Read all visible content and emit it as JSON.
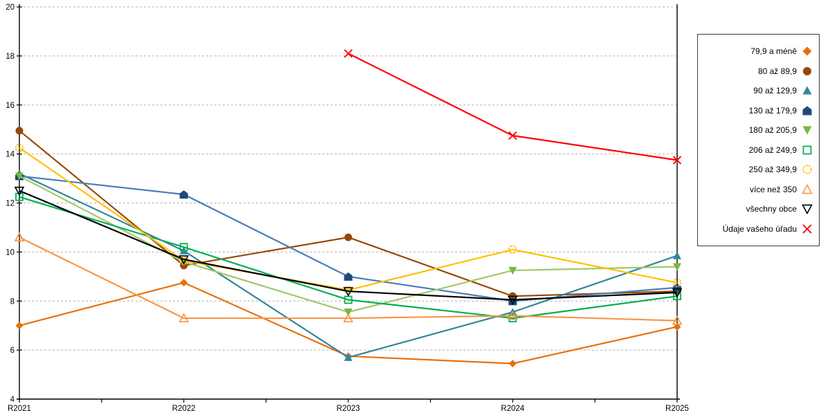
{
  "chart_data": {
    "type": "line",
    "title": "",
    "xlabel": "",
    "ylabel": "",
    "categories": [
      "R2021",
      "R2022",
      "R2023",
      "R2024",
      "R2025"
    ],
    "ylim": [
      4,
      20
    ],
    "yticks": [
      4,
      6,
      8,
      10,
      12,
      14,
      16,
      18,
      20
    ],
    "grid": "horizontal-dashed",
    "gridline_color": "#b0b0b0",
    "axis_color": "#000000",
    "legend_position": "right",
    "series": [
      {
        "name": "79,9 a méně",
        "marker": "diamond",
        "open": false,
        "color": "#E8700A",
        "line_color": "#E8700A",
        "values": [
          7.0,
          8.75,
          5.75,
          5.45,
          6.95
        ]
      },
      {
        "name": "80 až 89,9",
        "marker": "circle",
        "open": false,
        "color": "#984807",
        "line_color": "#984807",
        "values": [
          14.95,
          9.45,
          10.6,
          8.2,
          8.4
        ]
      },
      {
        "name": "90 až 129,9",
        "marker": "triangle-up",
        "open": false,
        "color": "#31859C",
        "line_color": "#31859C",
        "values": [
          13.2,
          10.05,
          5.7,
          7.55,
          9.85
        ]
      },
      {
        "name": "130 až 179,9",
        "marker": "house",
        "open": false,
        "color": "#1F497D",
        "line_color": "#4A7EBB",
        "values": [
          13.1,
          12.35,
          9.0,
          8.0,
          8.55
        ]
      },
      {
        "name": "180 až 205,9",
        "marker": "triangle-down",
        "open": false,
        "color": "#76B83F",
        "line_color": "#A2C769",
        "values": [
          13.1,
          9.6,
          7.55,
          9.25,
          9.4
        ]
      },
      {
        "name": "206 až 249,9",
        "marker": "square",
        "open": true,
        "color": "#00B050",
        "line_color": "#00B050",
        "values": [
          12.25,
          10.2,
          8.05,
          7.3,
          8.2
        ]
      },
      {
        "name": "250 až 349,9",
        "marker": "circle-dashed",
        "open": true,
        "color": "#FFC000",
        "line_color": "#FFC000",
        "values": [
          14.25,
          9.65,
          8.45,
          10.1,
          8.75
        ]
      },
      {
        "name": "více než 350",
        "marker": "triangle-up",
        "open": true,
        "color": "#F79646",
        "line_color": "#F79646",
        "values": [
          10.6,
          7.3,
          7.3,
          7.4,
          7.2
        ]
      },
      {
        "name": "všechny obce",
        "marker": "triangle-down",
        "open": true,
        "color": "#000000",
        "line_color": "#000000",
        "values": [
          12.5,
          9.7,
          8.4,
          8.05,
          8.35
        ]
      },
      {
        "name": "Údaje vašeho úřadu",
        "marker": "x",
        "open": true,
        "color": "#FF0000",
        "line_color": "#FF0000",
        "values": [
          null,
          null,
          18.1,
          14.75,
          13.75
        ]
      }
    ]
  }
}
